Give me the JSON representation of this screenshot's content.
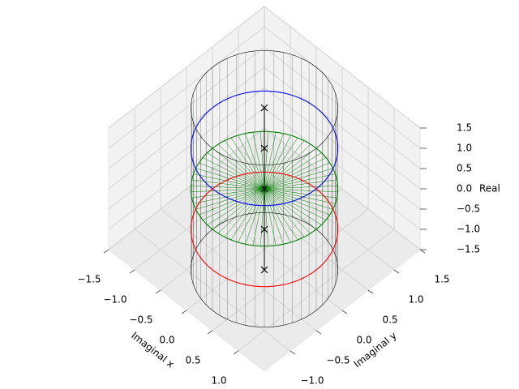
{
  "chart_data": {
    "type": "3d",
    "xlabel": "Imaginal x",
    "ylabel": "Imaginal y",
    "zlabel": "Real",
    "xlim": [
      -1.5,
      1.5
    ],
    "ylim": [
      -1.5,
      1.5
    ],
    "zlim": [
      -1.5,
      1.5
    ],
    "xticks": [
      {
        "value": -1.5,
        "label": "−1.5"
      },
      {
        "value": -1.0,
        "label": "−1.0"
      },
      {
        "value": -0.5,
        "label": "−0.5"
      },
      {
        "value": 0,
        "label": "0.0"
      },
      {
        "value": 0.5,
        "label": "0.5"
      },
      {
        "value": 1.0,
        "label": "1.0"
      }
    ],
    "yticks": [
      {
        "value": -1.0,
        "label": "−1.0"
      },
      {
        "value": -0.5,
        "label": "−0.5"
      },
      {
        "value": 0,
        "label": "0.0"
      },
      {
        "value": 0.5,
        "label": "0.5"
      },
      {
        "value": 1.0,
        "label": "1.0"
      },
      {
        "value": 1.5,
        "label": "1.5"
      }
    ],
    "zticks": [
      {
        "value": -1.5,
        "label": "−1.5"
      },
      {
        "value": -1.0,
        "label": "−1.0"
      },
      {
        "value": -0.5,
        "label": "−0.5"
      },
      {
        "value": 0,
        "label": "0.0"
      },
      {
        "value": 0.5,
        "label": "0.5"
      },
      {
        "value": 1.0,
        "label": "1.0"
      },
      {
        "value": 1.5,
        "label": "1.5"
      }
    ],
    "grid": true,
    "series": [
      {
        "type": "cylinder",
        "color": "#000000",
        "radius": 1,
        "z": [
          -2,
          2
        ]
      },
      {
        "type": "disk",
        "color": "#008000",
        "radius": 1,
        "z": 0
      },
      {
        "type": "circle",
        "color": "#0000ff",
        "radius": 1,
        "z": 1
      },
      {
        "type": "circle",
        "color": "#ff0000",
        "radius": 1,
        "z": -1
      },
      {
        "type": "scatter",
        "marker": "x",
        "color": "#000000",
        "x": [
          0,
          0,
          0,
          0,
          0
        ],
        "y": [
          0,
          0,
          0,
          0,
          0
        ],
        "z": [
          2,
          1,
          0,
          -1,
          -2
        ]
      }
    ]
  }
}
